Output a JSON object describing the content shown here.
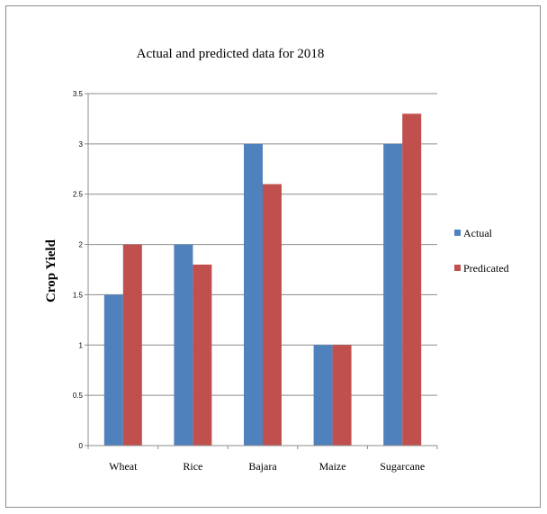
{
  "chart_data": {
    "type": "bar",
    "title": "Actual and predicted data for 2018",
    "xlabel": "",
    "ylabel": "Crop Yield",
    "categories": [
      "Wheat",
      "Rice",
      "Bajara",
      "Maize",
      "Sugarcane"
    ],
    "series": [
      {
        "name": "Actual",
        "color": "#4f81bd",
        "values": [
          1.5,
          2,
          3,
          1,
          3
        ]
      },
      {
        "name": "Predicated",
        "color": "#c0504d",
        "values": [
          2,
          1.8,
          2.6,
          1,
          3.3
        ]
      }
    ],
    "ylim": [
      0,
      3.5
    ],
    "yticks": [
      "0",
      "0.5",
      "1",
      "1.5",
      "2",
      "2.5",
      "3",
      "3.5"
    ],
    "grid": true,
    "legend": "right"
  }
}
